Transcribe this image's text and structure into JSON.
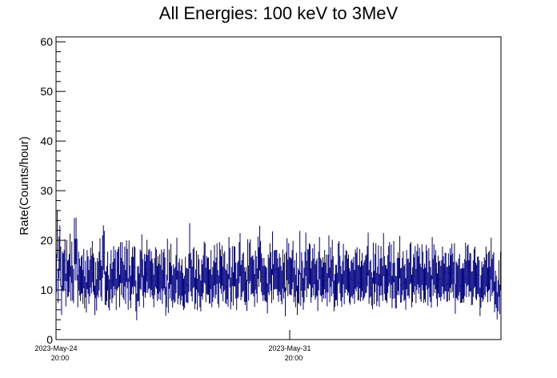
{
  "chart_data": {
    "type": "scatter",
    "title": "All Energies:  100 keV to 3MeV",
    "xlabel": "",
    "ylabel": "Rate(Counts/hour)",
    "ylim": [
      0,
      61
    ],
    "yticks": [
      0,
      10,
      20,
      30,
      40,
      50,
      60
    ],
    "xticks": [
      {
        "date": "2023-May-24",
        "time": "20:00"
      },
      {
        "date": "2023-May-31",
        "time": "20:00"
      }
    ],
    "grid": false,
    "legend": "none",
    "series": [
      {
        "color": "#00007f",
        "values": [
          13.4,
          21.2,
          10.9,
          16.5,
          18.5,
          14.7,
          7.9,
          13.8,
          13.5,
          14.1,
          16.0,
          10.0,
          15.9,
          12.2,
          12.4,
          13.4,
          17.0,
          11.3,
          15.6,
          11.4,
          10.8,
          19.8,
          16.1,
          19.9,
          16.1,
          9.8,
          13.8,
          12.6,
          11.3,
          12.9,
          13.2,
          10.6,
          14.3,
          9.5,
          12.2,
          8.5,
          14.1,
          13.0,
          10.6,
          12.4,
          14.5,
          13.1,
          15.7,
          13.5,
          12.8,
          7.9,
          12.0,
          9.0,
          12.7,
          12.1,
          13.8,
          16.2,
          12.3,
          11.3,
          16.7,
          18.5,
          17.5,
          10.4,
          10.3,
          11.3,
          13.8,
          9.7,
          9.0,
          11.7,
          14.1,
          10.8,
          12.0,
          14.8,
          12.6,
          14.1,
          9.1,
          13.8,
          14.3,
          14.7,
          9.8,
          15.5,
          12.7,
          15.5,
          12.1,
          11.5,
          14.7,
          10.6,
          15.8,
          14.3,
          9.2,
          15.8,
          11.4,
          9.6,
          12.9,
          14.6,
          12.9,
          14.8,
          14.6,
          8.8,
          6.6,
          11.2,
          11.3,
          10.0,
          14.2,
          13.9,
          16.9,
          12.5,
          9.7,
          13.4,
          12.1,
          13.3,
          15.9,
          13.2,
          14.1,
          14.3,
          12.2,
          13.9,
          12.6,
          11.8,
          9.8,
          12.7,
          14.6,
          14.2,
          11.3,
          13.0,
          11.7,
          13.4,
          11.5,
          14.2,
          10.6,
          13.7,
          14.3,
          12.8,
          7.7,
          9.8,
          16.1,
          8.4,
          14.2,
          11.9,
          15.2,
          11.3,
          9.7,
          11.6,
          10.8,
          11.1,
          13.2,
          16.3,
          10.5,
          11.9,
          12.6,
          10.4,
          11.4,
          12.5,
          10.1,
          9.1,
          9.6,
          12.9,
          11.0,
          10.9,
          10.8,
          13.4,
          18.9,
          13.6,
          12.4,
          11.2,
          14.3,
          14.6,
          9.3,
          10.7,
          14.0,
          9.1,
          13.3,
          12.5,
          9.8,
          8.8,
          12.4,
          11.6,
          13.2,
          15.6,
          15.3,
          11.0,
          13.0,
          12.7,
          12.8,
          10.7,
          10.7,
          14.1,
          9.8,
          11.1,
          12.2,
          15.0,
          11.9,
          12.8,
          15.3,
          10.6,
          9.7,
          15.5,
          14.2,
          13.0,
          14.9,
          11.2,
          13.5,
          13.9,
          10.8,
          10.5,
          11.7,
          9.9,
          16.4,
          14.5,
          9.3,
          11.1,
          14.8,
          10.2,
          14.8,
          14.7,
          11.9,
          9.1,
          11.9,
          12.2,
          15.5,
          17.1,
          11.5,
          12.3,
          13.4,
          13.7,
          11.1,
          10.3,
          11.1,
          8.9,
          16.0,
          11.4,
          15.4,
          16.0,
          12.8,
          13.0,
          13.2,
          12.4,
          9.9,
          14.0,
          13.0,
          10.9,
          16.5,
          14.6,
          18.4,
          15.7,
          13.5,
          12.7,
          11.3,
          12.7,
          11.4,
          11.2,
          11.0,
          8.3,
          13.3,
          12.7,
          15.3,
          13.7,
          10.8,
          17.4,
          11.6,
          14.0,
          14.1,
          14.1,
          14.1,
          12.6,
          11.1,
          13.5,
          12.8,
          11.3,
          10.5,
          14.2,
          11.9,
          13.4,
          7.6,
          13.7,
          16.2,
          12.4,
          15.3,
          12.9,
          12.8,
          12.6,
          14.1,
          15.7,
          11.0,
          12.3,
          9.8,
          13.6,
          7.9,
          10.9,
          10.5,
          17.5,
          10.1,
          13.7,
          12.2,
          9.2,
          11.0,
          13.8,
          17.2,
          12.2,
          14.3,
          14.2,
          15.3,
          15.1,
          10.9,
          12.2,
          14.4,
          12.6,
          15.2,
          11.6,
          12.2,
          12.6,
          8.9,
          13.8,
          16.4,
          12.7,
          12.4,
          11.1,
          12.8,
          11.9,
          14.1,
          11.9,
          13.3,
          10.0,
          13.3,
          16.7,
          11.0,
          14.6,
          12.4,
          15.9,
          13.0,
          8.8,
          9.9,
          11.5,
          11.5,
          10.1,
          15.3,
          15.7,
          13.1,
          11.3,
          9.9,
          12.2,
          15.2,
          10.5,
          13.2,
          14.1,
          13.9,
          12.6,
          13.3,
          10.9,
          10.4,
          12.2,
          12.5,
          11.9,
          12.9,
          10.6,
          14.2,
          13.6,
          14.6,
          11.4,
          11.5,
          14.3,
          11.2,
          12.2,
          13.6,
          11.4,
          11.9,
          12.3,
          13.1,
          13.3,
          14.8,
          17.2,
          10.6,
          12.1,
          12.4,
          10.2,
          9.3,
          15.4,
          10.5,
          13.4,
          15.3,
          10.1,
          11.2,
          14.9,
          9.9,
          12.6,
          14.8,
          12.7,
          11.3,
          17.1,
          13.0,
          11.5,
          11.4,
          10.8,
          13.2,
          14.8,
          15.5,
          12.0,
          15.1,
          9.6,
          11.8,
          15.7,
          11.9,
          9.6,
          9.5,
          12.7,
          13.7,
          12.7,
          16.6,
          10.9,
          11.0,
          12.7,
          13.9,
          11.3,
          11.6,
          9.2,
          14.1,
          12.5,
          12.6,
          11.9,
          15.2,
          15.5,
          9.8,
          11.1,
          13.4,
          12.8,
          14.8,
          10.8,
          13.9,
          15.2,
          13.0,
          14.5,
          11.7,
          11.1,
          15.1,
          13.8,
          10.8,
          11.7,
          11.0,
          15.0,
          14.0,
          10.2,
          14.4,
          12.2,
          11.1,
          9.7,
          16.4,
          12.5,
          15.1,
          13.2,
          14.1,
          11.9,
          10.0,
          13.1,
          12.1,
          12.2,
          11.3,
          12.3,
          14.7,
          13.0,
          11.7,
          13.6,
          13.6,
          11.1,
          11.2,
          13.5,
          11.4,
          14.4,
          13.2,
          15.2,
          13.5,
          12.0,
          15.3,
          8.2,
          12.1,
          11.8,
          11.4,
          12.6,
          13.4,
          10.8,
          10.9,
          10.9,
          11.8,
          10.9,
          12.5,
          15.4,
          12.2,
          14.8,
          15.1,
          12.3,
          13.6,
          13.5,
          10.3,
          10.4,
          12.3,
          14.3,
          14.7,
          11.9,
          11.5,
          12.9,
          13.0,
          12.3,
          7.6,
          9.7,
          12.1,
          11.1,
          11.6,
          12.8,
          12.3,
          14.7,
          13.4,
          11.0,
          13.7,
          14.0,
          11.2,
          16.3,
          12.5,
          13.3,
          13.7,
          8.6,
          10.5,
          9.6,
          6.8,
          8.8,
          12.3,
          8.1,
          13.8
        ]
      }
    ]
  }
}
